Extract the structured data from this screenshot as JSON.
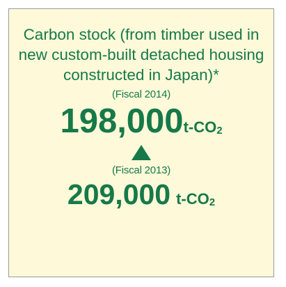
{
  "card": {
    "title": "Carbon stock (from timber used in new custom-built detached housing constructed in Japan)*",
    "current": {
      "period": "(Fiscal 2014)",
      "value": "198,000",
      "unit": "t-CO",
      "unit_sub": "2"
    },
    "previous": {
      "period": "(Fiscal 2013)",
      "value": "209,000",
      "unit": "t-CO",
      "unit_sub": "2"
    }
  }
}
